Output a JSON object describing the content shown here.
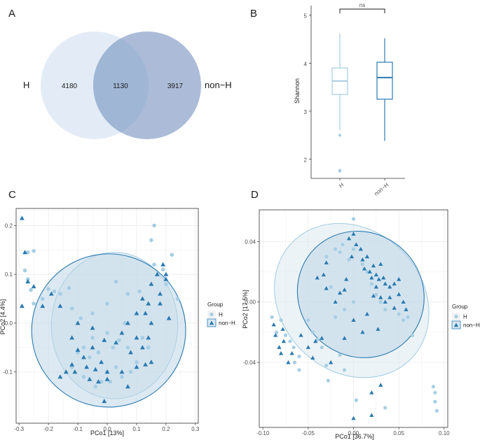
{
  "colors": {
    "h": "#a6cee3",
    "nonh": "#2a7ab0",
    "venn_h": "#e3ecf6",
    "venn_nonh": "#9db0d1",
    "venn_overlap": "#9fb6d5"
  },
  "panels": {
    "a": "A",
    "b": "B",
    "c": "C",
    "d": "D"
  },
  "chart_data": [
    {
      "panel": "A",
      "type": "venn",
      "sets": [
        "H",
        "non−H"
      ],
      "values": {
        "h_only": "4180",
        "overlap": "1130",
        "nonh_only": "3917"
      }
    },
    {
      "panel": "B",
      "type": "box",
      "ylabel": "Shannon",
      "categories": [
        "H",
        "non−H"
      ],
      "ylim": [
        1.6,
        5.2
      ],
      "yticks": [
        "2",
        "3",
        "4",
        "5"
      ],
      "significance": "ns",
      "series": [
        {
          "name": "H",
          "q1": 3.35,
          "median": 3.63,
          "q3": 3.9,
          "whisker_low": 2.6,
          "whisker_high": 4.62,
          "outliers": [
            2.5,
            1.77,
            1.75
          ]
        },
        {
          "name": "non−H",
          "q1": 3.25,
          "median": 3.7,
          "q3": 4.02,
          "whisker_low": 2.38,
          "whisker_high": 4.52,
          "outliers": []
        }
      ]
    },
    {
      "panel": "C",
      "type": "scatter",
      "xlabel": "PCo1 [13%]",
      "ylabel": "PCo2 [4.4%]",
      "xlim": [
        -0.31,
        0.31
      ],
      "ylim": [
        -0.205,
        0.235
      ],
      "xticks": [
        "-0.3",
        "-0.2",
        "-0.1",
        "0.0",
        "0.1",
        "0.2",
        "0.3"
      ],
      "yticks": [
        "-0.1",
        "0.0",
        "0.1",
        "0.2"
      ],
      "legend": {
        "title": "Group",
        "items": [
          "H",
          "non−H"
        ]
      },
      "ellipses": [
        {
          "group": "H",
          "cx": 0.025,
          "cy": -0.005,
          "rx": 0.215,
          "ry": 0.15,
          "angle": 0
        },
        {
          "group": "non−H",
          "cx": 0.005,
          "cy": -0.015,
          "rx": 0.262,
          "ry": 0.157,
          "angle": 5
        }
      ],
      "series": [
        {
          "name": "H",
          "points": [
            [
              -0.27,
              0.145
            ],
            [
              -0.25,
              0.148
            ],
            [
              -0.28,
              0.108
            ],
            [
              -0.27,
              0.09
            ],
            [
              -0.26,
              0.068
            ],
            [
              -0.25,
              0.04
            ],
            [
              -0.22,
              0.05
            ],
            [
              -0.2,
              0.07
            ],
            [
              -0.18,
              0.065
            ],
            [
              -0.16,
              0.06
            ],
            [
              -0.13,
              0.072
            ],
            [
              -0.12,
              0.03
            ],
            [
              -0.09,
              0.01
            ],
            [
              -0.05,
              0.02
            ],
            [
              0.0,
              0.04
            ],
            [
              0.03,
              0.085
            ],
            [
              0.07,
              0.06
            ],
            [
              0.11,
              0.065
            ],
            [
              0.15,
              0.17
            ],
            [
              0.16,
              0.2
            ],
            [
              0.16,
              0.12
            ],
            [
              0.19,
              0.11
            ],
            [
              0.2,
              0.08
            ],
            [
              0.22,
              0.14
            ],
            [
              0.24,
              0.05
            ],
            [
              0.06,
              0.0
            ],
            [
              0.0,
              -0.02
            ],
            [
              -0.05,
              -0.03
            ],
            [
              -0.08,
              -0.05
            ],
            [
              -0.1,
              -0.06
            ],
            [
              -0.12,
              -0.09
            ],
            [
              -0.06,
              -0.07
            ],
            [
              -0.03,
              -0.06
            ],
            [
              0.02,
              -0.05
            ],
            [
              0.04,
              -0.035
            ],
            [
              0.07,
              -0.05
            ],
            [
              0.1,
              -0.08
            ],
            [
              0.12,
              -0.03
            ],
            [
              0.14,
              -0.05
            ],
            [
              0.03,
              -0.09
            ],
            [
              0.0,
              -0.1
            ],
            [
              -0.02,
              -0.12
            ],
            [
              0.05,
              -0.11
            ],
            [
              0.08,
              -0.1
            ],
            [
              -0.08,
              -0.11
            ],
            [
              -0.04,
              -0.13
            ],
            [
              0.01,
              -0.12
            ]
          ]
        },
        {
          "name": "non−H",
          "points": [
            [
              -0.29,
              0.215
            ],
            [
              -0.28,
              0.145
            ],
            [
              -0.27,
              0.085
            ],
            [
              -0.25,
              0.075
            ],
            [
              -0.29,
              0.035
            ],
            [
              -0.22,
              0.035
            ],
            [
              -0.19,
              0.06
            ],
            [
              -0.16,
              0.035
            ],
            [
              -0.1,
              0.0
            ],
            [
              -0.12,
              -0.03
            ],
            [
              -0.1,
              -0.055
            ],
            [
              -0.08,
              -0.07
            ],
            [
              -0.07,
              -0.09
            ],
            [
              -0.05,
              -0.05
            ],
            [
              -0.04,
              -0.095
            ],
            [
              -0.02,
              -0.08
            ],
            [
              0.0,
              -0.1
            ],
            [
              0.0,
              -0.115
            ],
            [
              -0.03,
              -0.12
            ],
            [
              -0.06,
              -0.115
            ],
            [
              -0.12,
              -0.085
            ],
            [
              -0.14,
              -0.1
            ],
            [
              -0.16,
              -0.11
            ],
            [
              -0.11,
              -0.1
            ],
            [
              0.03,
              -0.04
            ],
            [
              0.05,
              -0.02
            ],
            [
              0.07,
              0.0
            ],
            [
              0.1,
              0.02
            ],
            [
              0.12,
              0.05
            ],
            [
              0.14,
              0.04
            ],
            [
              0.15,
              0.08
            ],
            [
              0.17,
              0.1
            ],
            [
              0.19,
              0.12
            ],
            [
              0.2,
              0.09
            ],
            [
              0.2,
              0.1
            ],
            [
              0.18,
              0.06
            ],
            [
              0.13,
              0.02
            ],
            [
              0.15,
              0.0
            ],
            [
              0.14,
              -0.03
            ],
            [
              0.12,
              -0.05
            ],
            [
              0.1,
              -0.03
            ],
            [
              0.08,
              -0.06
            ],
            [
              0.1,
              -0.09
            ],
            [
              0.13,
              -0.085
            ],
            [
              0.15,
              -0.08
            ],
            [
              0.18,
              0.04
            ],
            [
              0.21,
              0.01
            ],
            [
              -0.01,
              -0.035
            ],
            [
              -0.05,
              -0.01
            ],
            [
              -0.01,
              -0.16
            ],
            [
              0.07,
              -0.13
            ],
            [
              0.05,
              -0.1
            ]
          ]
        }
      ]
    },
    {
      "panel": "D",
      "type": "scatter",
      "xlabel": "PCo1 [36.7%]",
      "ylabel": "PCo2 [17.5%]",
      "xlim": [
        -0.104,
        0.104
      ],
      "ylim": [
        -0.083,
        0.061
      ],
      "xticks": [
        "-0.10",
        "-0.05",
        "0.00",
        "0.05",
        "0.10"
      ],
      "yticks": [
        "-0.04",
        "0.00",
        "0.04"
      ],
      "legend": {
        "title": "Group",
        "items": [
          "H",
          "non−H"
        ]
      },
      "ellipses": [
        {
          "group": "H",
          "cx": -0.002,
          "cy": 0.001,
          "rx": 0.078,
          "ry": 0.055,
          "angle": 45
        },
        {
          "group": "non−H",
          "cx": 0.008,
          "cy": 0.005,
          "rx": 0.068,
          "ry": 0.043,
          "angle": 45
        }
      ],
      "series": [
        {
          "name": "H",
          "points": [
            [
              -0.09,
              -0.01
            ],
            [
              -0.085,
              -0.02
            ],
            [
              -0.08,
              -0.012
            ],
            [
              -0.075,
              -0.022
            ],
            [
              -0.07,
              -0.026
            ],
            [
              -0.066,
              -0.03
            ],
            [
              -0.06,
              -0.036
            ],
            [
              -0.065,
              -0.04
            ],
            [
              -0.06,
              -0.045
            ],
            [
              -0.05,
              -0.012
            ],
            [
              -0.045,
              -0.02
            ],
            [
              -0.04,
              -0.025
            ],
            [
              -0.035,
              -0.03
            ],
            [
              -0.03,
              -0.042
            ],
            [
              -0.02,
              -0.01
            ],
            [
              -0.01,
              -0.005
            ],
            [
              0.0,
              0.0
            ],
            [
              -0.025,
              0.01
            ],
            [
              -0.03,
              0.03
            ],
            [
              -0.02,
              0.035
            ],
            [
              -0.015,
              0.033
            ],
            [
              -0.012,
              0.038
            ],
            [
              -0.005,
              0.028
            ],
            [
              0.0,
              0.055
            ],
            [
              0.0,
              0.035
            ],
            [
              0.01,
              0.025
            ],
            [
              0.015,
              0.02
            ],
            [
              0.02,
              0.012
            ],
            [
              0.025,
              0.005
            ],
            [
              0.03,
              0.0
            ],
            [
              0.035,
              -0.005
            ],
            [
              0.05,
              -0.008
            ],
            [
              0.055,
              -0.012
            ],
            [
              0.06,
              -0.01
            ],
            [
              0.065,
              -0.022
            ],
            [
              -0.015,
              -0.035
            ],
            [
              -0.028,
              -0.052
            ],
            [
              0.003,
              -0.065
            ],
            [
              0.088,
              -0.056
            ],
            [
              0.09,
              -0.06
            ],
            [
              0.09,
              -0.066
            ],
            [
              0.092,
              -0.072
            ],
            [
              0.035,
              -0.07
            ],
            [
              -0.01,
              -0.045
            ]
          ]
        },
        {
          "name": "non−H",
          "points": [
            [
              -0.088,
              -0.015
            ],
            [
              -0.086,
              -0.022
            ],
            [
              -0.082,
              -0.03
            ],
            [
              -0.077,
              -0.026
            ],
            [
              -0.078,
              -0.018
            ],
            [
              -0.08,
              -0.034
            ],
            [
              -0.072,
              -0.04
            ],
            [
              -0.068,
              -0.034
            ],
            [
              -0.058,
              -0.022
            ],
            [
              -0.05,
              -0.03
            ],
            [
              -0.045,
              -0.037
            ],
            [
              -0.042,
              -0.026
            ],
            [
              -0.035,
              -0.024
            ],
            [
              -0.04,
              0.016
            ],
            [
              -0.033,
              0.018
            ],
            [
              -0.03,
              0.026
            ],
            [
              -0.03,
              0.009
            ],
            [
              -0.02,
              0.0
            ],
            [
              -0.015,
              0.006
            ],
            [
              -0.025,
              -0.04
            ],
            [
              -0.01,
              0.008
            ],
            [
              -0.008,
              0.015
            ],
            [
              -0.005,
              0.042
            ],
            [
              0.0,
              0.045
            ],
            [
              -0.002,
              0.03
            ],
            [
              0.003,
              0.038
            ],
            [
              0.008,
              0.035
            ],
            [
              0.01,
              0.028
            ],
            [
              0.015,
              0.03
            ],
            [
              0.012,
              0.022
            ],
            [
              0.018,
              0.02
            ],
            [
              0.02,
              0.016
            ],
            [
              0.022,
              0.024
            ],
            [
              0.025,
              0.018
            ],
            [
              0.028,
              0.015
            ],
            [
              0.03,
              0.025
            ],
            [
              0.033,
              0.016
            ],
            [
              0.035,
              0.012
            ],
            [
              0.04,
              0.01
            ],
            [
              0.045,
              0.012
            ],
            [
              0.05,
              0.005
            ],
            [
              0.05,
              0.015
            ],
            [
              0.055,
              0.0
            ],
            [
              0.058,
              -0.005
            ],
            [
              0.045,
              -0.004
            ],
            [
              0.04,
              0.003
            ],
            [
              0.035,
              0.0
            ],
            [
              0.03,
              0.003
            ],
            [
              0.025,
              0.01
            ],
            [
              0.022,
              0.004
            ],
            [
              0.01,
              -0.02
            ],
            [
              0.0,
              -0.012
            ],
            [
              0.03,
              -0.055
            ],
            [
              0.02,
              -0.06
            ],
            [
              0.0,
              -0.077
            ],
            [
              0.02,
              -0.075
            ],
            [
              -0.01,
              -0.024
            ],
            [
              0.015,
              -0.008
            ],
            [
              0.027,
              -0.018
            ]
          ]
        }
      ]
    }
  ]
}
